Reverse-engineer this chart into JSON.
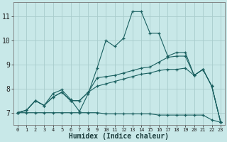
{
  "background_color": "#c8e8e8",
  "grid_color": "#a8cccc",
  "line_color": "#1a6060",
  "xlabel": "Humidex (Indice chaleur)",
  "xlim": [
    -0.5,
    23.5
  ],
  "ylim": [
    6.5,
    11.6
  ],
  "y_ticks": [
    7,
    8,
    9,
    10,
    11
  ],
  "series": [
    [
      7.0,
      7.1,
      7.5,
      7.3,
      7.8,
      7.95,
      7.55,
      7.05,
      7.8,
      8.85,
      10.0,
      9.75,
      10.1,
      11.2,
      11.2,
      10.3,
      10.3,
      9.35,
      9.5,
      9.5,
      8.55,
      8.8,
      8.1,
      6.6
    ],
    [
      7.0,
      7.1,
      7.5,
      7.3,
      7.65,
      7.85,
      7.5,
      7.5,
      7.85,
      8.45,
      8.5,
      8.55,
      8.65,
      8.75,
      8.85,
      8.9,
      9.1,
      9.3,
      9.35,
      9.35,
      8.55,
      8.8,
      8.1,
      6.6
    ],
    [
      7.0,
      7.1,
      7.5,
      7.3,
      7.65,
      7.85,
      7.5,
      7.5,
      7.85,
      8.1,
      8.2,
      8.3,
      8.4,
      8.5,
      8.6,
      8.65,
      8.75,
      8.8,
      8.8,
      8.85,
      8.55,
      8.8,
      8.1,
      6.6
    ],
    [
      7.0,
      7.0,
      7.0,
      7.0,
      7.0,
      7.0,
      7.0,
      7.0,
      7.0,
      7.0,
      6.95,
      6.95,
      6.95,
      6.95,
      6.95,
      6.95,
      6.9,
      6.9,
      6.9,
      6.9,
      6.9,
      6.9,
      6.7,
      6.6
    ]
  ]
}
